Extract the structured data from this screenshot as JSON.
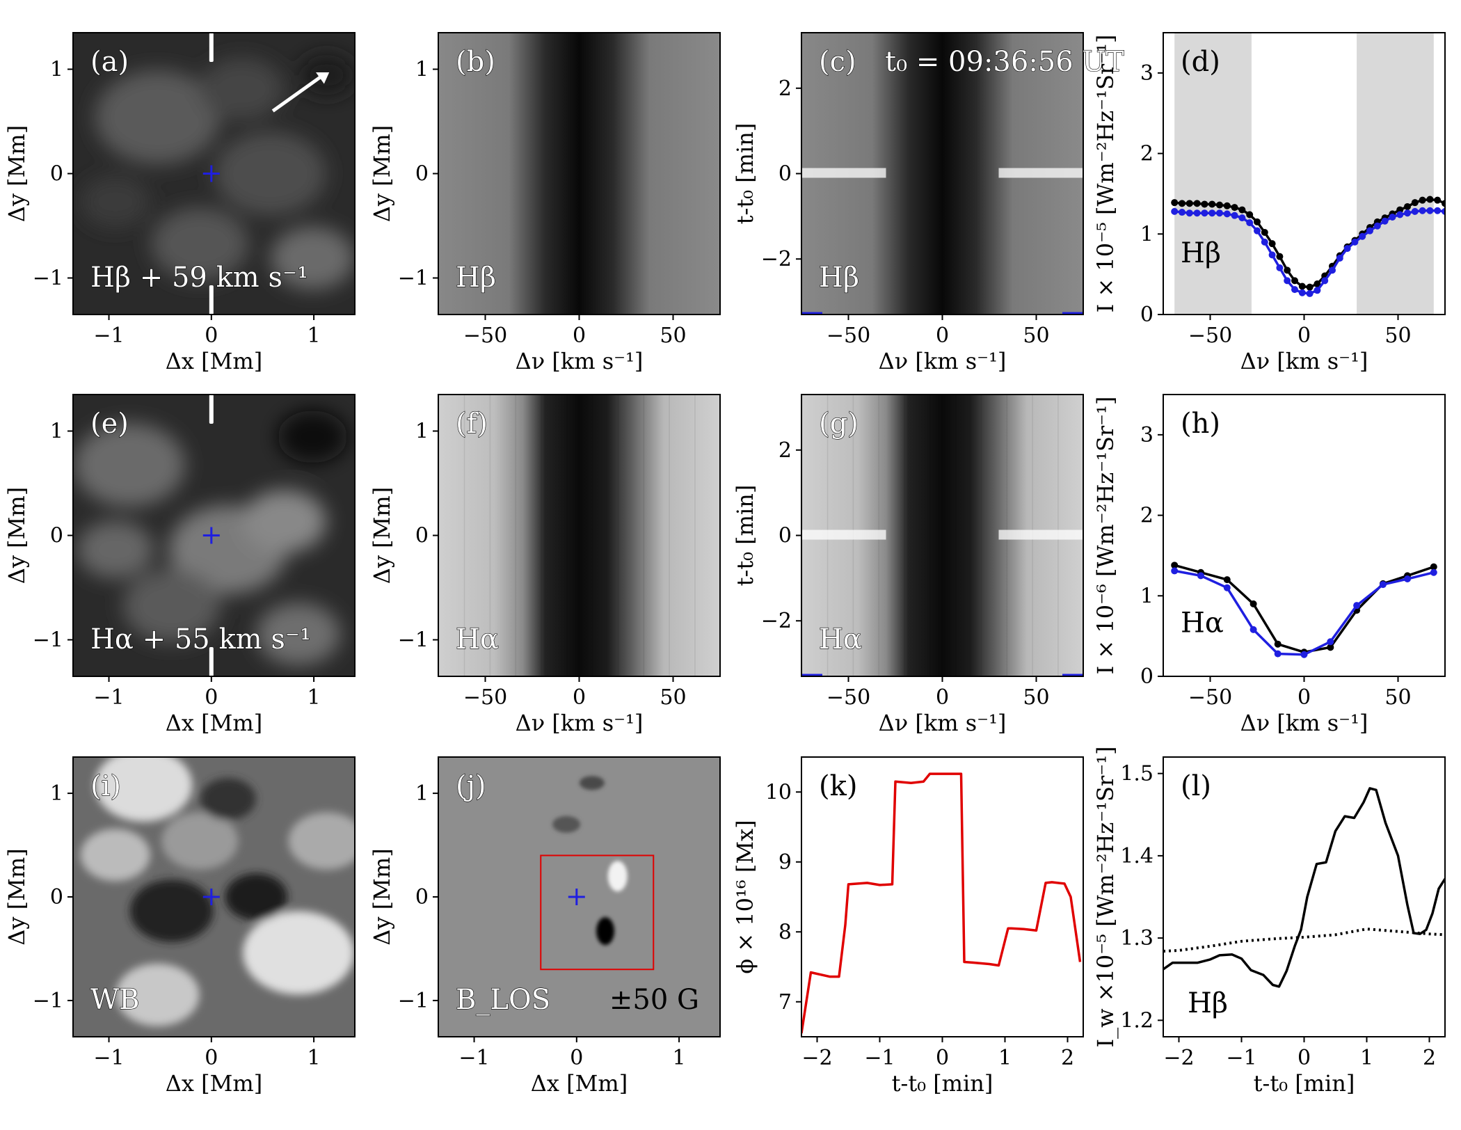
{
  "figure": {
    "panels": [
      {
        "id": "a",
        "label": "(a)",
        "kind": "image",
        "note": "Hβ + 59 km s⁻¹",
        "xlabel": "Δx [Mm]",
        "ylabel": "Δy [Mm]"
      },
      {
        "id": "b",
        "label": "(b)",
        "kind": "image",
        "note": "Hβ",
        "xlabel": "Δν [km s⁻¹]",
        "ylabel": "Δy [Mm]"
      },
      {
        "id": "c",
        "label": "(c)",
        "kind": "image",
        "note": "Hβ",
        "title": "t₀ = 09:36:56 UT",
        "xlabel": "Δν [km s⁻¹]",
        "ylabel": "t-t₀ [min]"
      },
      {
        "id": "d",
        "label": "(d)",
        "kind": "line",
        "note": "Hβ",
        "xlabel": "Δν [km s⁻¹]",
        "ylabel": "I × 10⁻⁵ [Wm⁻²Hz⁻¹Sr⁻¹]"
      },
      {
        "id": "e",
        "label": "(e)",
        "kind": "image",
        "note": "Hα + 55 km s⁻¹",
        "xlabel": "Δx [Mm]",
        "ylabel": "Δy [Mm]"
      },
      {
        "id": "f",
        "label": "(f)",
        "kind": "image",
        "note": "Hα",
        "xlabel": "Δν [km s⁻¹]",
        "ylabel": "Δy [Mm]"
      },
      {
        "id": "g",
        "label": "(g)",
        "kind": "image",
        "note": "Hα",
        "xlabel": "Δν [km s⁻¹]",
        "ylabel": "t-t₀ [min]"
      },
      {
        "id": "h",
        "label": "(h)",
        "kind": "line",
        "note": "Hα",
        "xlabel": "Δν [km s⁻¹]",
        "ylabel": "I × 10⁻⁶ [Wm⁻²Hz⁻¹Sr⁻¹]"
      },
      {
        "id": "i",
        "label": "(i)",
        "kind": "image",
        "note": "WB",
        "xlabel": "Δx [Mm]",
        "ylabel": "Δy [Mm]"
      },
      {
        "id": "j",
        "label": "(j)",
        "kind": "image",
        "note": "B_LOS",
        "note2": "±50 G",
        "xlabel": "Δx [Mm]",
        "ylabel": "Δy [Mm]"
      },
      {
        "id": "k",
        "label": "(k)",
        "kind": "line",
        "note": "",
        "xlabel": "t-t₀ [min]",
        "ylabel": "ϕ × 10¹⁶ [Mx]"
      },
      {
        "id": "l",
        "label": "(l)",
        "kind": "line",
        "note": "Hβ",
        "xlabel": "t-t₀ [min]",
        "ylabel": "I_w ×10⁻⁵ [Wm⁻²Hz⁻¹Sr⁻¹]"
      }
    ]
  },
  "chart_data": [
    {
      "panel": "a",
      "type": "heatmap",
      "xlim": [
        -1.35,
        1.4
      ],
      "ylim": [
        -1.35,
        1.35
      ],
      "xticks": [
        -1,
        0,
        1
      ],
      "yticks": [
        -1,
        0,
        1
      ],
      "marker": {
        "x": 0,
        "y": 0
      }
    },
    {
      "panel": "b",
      "type": "heatmap",
      "xlim": [
        -75,
        75
      ],
      "ylim": [
        -1.35,
        1.35
      ],
      "xticks": [
        -50,
        0,
        50
      ],
      "yticks": [
        -1,
        0,
        1
      ]
    },
    {
      "panel": "c",
      "type": "heatmap",
      "xlim": [
        -75,
        75
      ],
      "ylim": [
        -3.3,
        3.3
      ],
      "xticks": [
        -50,
        0,
        50
      ],
      "yticks": [
        -2,
        0,
        2
      ]
    },
    {
      "panel": "d",
      "type": "line",
      "xlim": [
        -75,
        75
      ],
      "ylim": [
        0,
        3.5
      ],
      "xticks": [
        -50,
        0,
        50
      ],
      "yticks": [
        0,
        1,
        2,
        3
      ],
      "shaded_bands": [
        [
          -69,
          -28
        ],
        [
          28,
          69
        ]
      ],
      "x": [
        -69,
        -65,
        -61,
        -57,
        -53,
        -49,
        -45,
        -41,
        -37,
        -33,
        -29,
        -25,
        -21,
        -17,
        -13,
        -9,
        -5,
        -1,
        3,
        7,
        11,
        15,
        19,
        23,
        27,
        31,
        35,
        39,
        43,
        47,
        51,
        55,
        59,
        63,
        67,
        71,
        75
      ],
      "series": [
        {
          "color": "#000000",
          "values": [
            1.39,
            1.38,
            1.38,
            1.38,
            1.37,
            1.37,
            1.36,
            1.35,
            1.33,
            1.3,
            1.24,
            1.15,
            1.02,
            0.88,
            0.72,
            0.55,
            0.42,
            0.35,
            0.34,
            0.38,
            0.48,
            0.6,
            0.73,
            0.84,
            0.92,
            1.0,
            1.08,
            1.15,
            1.2,
            1.25,
            1.3,
            1.34,
            1.39,
            1.42,
            1.43,
            1.42,
            1.38
          ]
        },
        {
          "color": "#1f1fe0",
          "values": [
            1.28,
            1.27,
            1.26,
            1.26,
            1.26,
            1.26,
            1.26,
            1.25,
            1.23,
            1.2,
            1.14,
            1.04,
            0.9,
            0.74,
            0.58,
            0.42,
            0.31,
            0.27,
            0.26,
            0.3,
            0.42,
            0.55,
            0.7,
            0.82,
            0.9,
            0.97,
            1.04,
            1.1,
            1.16,
            1.21,
            1.24,
            1.26,
            1.28,
            1.29,
            1.29,
            1.29,
            1.28
          ]
        }
      ]
    },
    {
      "panel": "e",
      "type": "heatmap",
      "xlim": [
        -1.35,
        1.4
      ],
      "ylim": [
        -1.35,
        1.35
      ],
      "xticks": [
        -1,
        0,
        1
      ],
      "yticks": [
        -1,
        0,
        1
      ],
      "marker": {
        "x": 0,
        "y": 0
      }
    },
    {
      "panel": "f",
      "type": "heatmap",
      "xlim": [
        -75,
        75
      ],
      "ylim": [
        -1.35,
        1.35
      ],
      "xticks": [
        -50,
        0,
        50
      ],
      "yticks": [
        -1,
        0,
        1
      ]
    },
    {
      "panel": "g",
      "type": "heatmap",
      "xlim": [
        -75,
        75
      ],
      "ylim": [
        -3.3,
        3.3
      ],
      "xticks": [
        -50,
        0,
        50
      ],
      "yticks": [
        -2,
        0,
        2
      ]
    },
    {
      "panel": "h",
      "type": "line",
      "xlim": [
        -75,
        75
      ],
      "ylim": [
        0,
        3.5
      ],
      "xticks": [
        -50,
        0,
        50
      ],
      "yticks": [
        0,
        1,
        2,
        3
      ],
      "x": [
        -69,
        -55,
        -41,
        -27,
        -14,
        0,
        14,
        28,
        42,
        55,
        69
      ],
      "series": [
        {
          "color": "#000000",
          "values": [
            1.38,
            1.29,
            1.2,
            0.9,
            0.4,
            0.3,
            0.36,
            0.82,
            1.15,
            1.25,
            1.36
          ]
        },
        {
          "color": "#1f1fe0",
          "values": [
            1.31,
            1.25,
            1.1,
            0.58,
            0.28,
            0.27,
            0.43,
            0.88,
            1.14,
            1.21,
            1.29
          ]
        }
      ]
    },
    {
      "panel": "i",
      "type": "heatmap",
      "xlim": [
        -1.35,
        1.4
      ],
      "ylim": [
        -1.35,
        1.35
      ],
      "xticks": [
        -1,
        0,
        1
      ],
      "yticks": [
        -1,
        0,
        1
      ],
      "marker": {
        "x": 0,
        "y": 0
      }
    },
    {
      "panel": "j",
      "type": "heatmap",
      "xlim": [
        -1.35,
        1.4
      ],
      "ylim": [
        -1.35,
        1.35
      ],
      "xticks": [
        -1,
        0,
        1
      ],
      "yticks": [
        -1,
        0,
        1
      ],
      "marker": {
        "x": 0,
        "y": 0
      },
      "box": [
        [
          -0.35,
          -0.7
        ],
        [
          0.75,
          0.4
        ]
      ]
    },
    {
      "panel": "k",
      "type": "line",
      "xlim": [
        -2.25,
        2.25
      ],
      "ylim": [
        6.5,
        10.5
      ],
      "xticks": [
        -2,
        -1,
        0,
        1,
        2
      ],
      "yticks": [
        7,
        8,
        9,
        10
      ],
      "x": [
        -2.25,
        -2.1,
        -1.8,
        -1.65,
        -1.55,
        -1.5,
        -1.2,
        -1.0,
        -0.8,
        -0.75,
        -0.5,
        -0.3,
        -0.2,
        0.3,
        0.35,
        0.5,
        0.75,
        0.9,
        1.05,
        1.1,
        1.3,
        1.5,
        1.65,
        1.75,
        1.95,
        2.05,
        2.2
      ],
      "series": [
        {
          "color": "#e00000",
          "values": [
            6.55,
            7.42,
            7.36,
            7.36,
            8.1,
            8.68,
            8.7,
            8.67,
            8.68,
            10.15,
            10.13,
            10.15,
            10.26,
            10.26,
            7.57,
            7.56,
            7.54,
            7.52,
            8.05,
            8.05,
            8.04,
            8.02,
            8.7,
            8.71,
            8.69,
            8.5,
            7.57
          ]
        }
      ]
    },
    {
      "panel": "l",
      "type": "line",
      "xlim": [
        -2.25,
        2.25
      ],
      "ylim": [
        1.18,
        1.52
      ],
      "xticks": [
        -2,
        -1,
        0,
        1,
        2
      ],
      "yticks": [
        1.2,
        1.3,
        1.4,
        1.5
      ],
      "series": [
        {
          "style": "solid",
          "color": "#000000",
          "x": [
            -2.25,
            -2.1,
            -1.9,
            -1.7,
            -1.5,
            -1.35,
            -1.15,
            -1.0,
            -0.85,
            -0.65,
            -0.5,
            -0.4,
            -0.28,
            -0.15,
            -0.05,
            0.05,
            0.2,
            0.35,
            0.5,
            0.65,
            0.8,
            0.95,
            1.05,
            1.15,
            1.3,
            1.5,
            1.65,
            1.75,
            1.85,
            1.95,
            2.05,
            2.15,
            2.25
          ],
          "values": [
            1.262,
            1.27,
            1.27,
            1.27,
            1.274,
            1.279,
            1.28,
            1.275,
            1.261,
            1.255,
            1.243,
            1.241,
            1.26,
            1.29,
            1.31,
            1.35,
            1.39,
            1.392,
            1.43,
            1.448,
            1.446,
            1.465,
            1.482,
            1.48,
            1.44,
            1.4,
            1.34,
            1.306,
            1.305,
            1.31,
            1.33,
            1.36,
            1.372
          ]
        },
        {
          "style": "dotted",
          "color": "#000000",
          "x": [
            -2.25,
            -2.0,
            -1.5,
            -1.0,
            -0.5,
            0.0,
            0.5,
            1.0,
            1.5,
            2.0,
            2.25
          ],
          "values": [
            1.284,
            1.285,
            1.29,
            1.296,
            1.299,
            1.301,
            1.304,
            1.311,
            1.308,
            1.305,
            1.304
          ]
        }
      ]
    }
  ]
}
